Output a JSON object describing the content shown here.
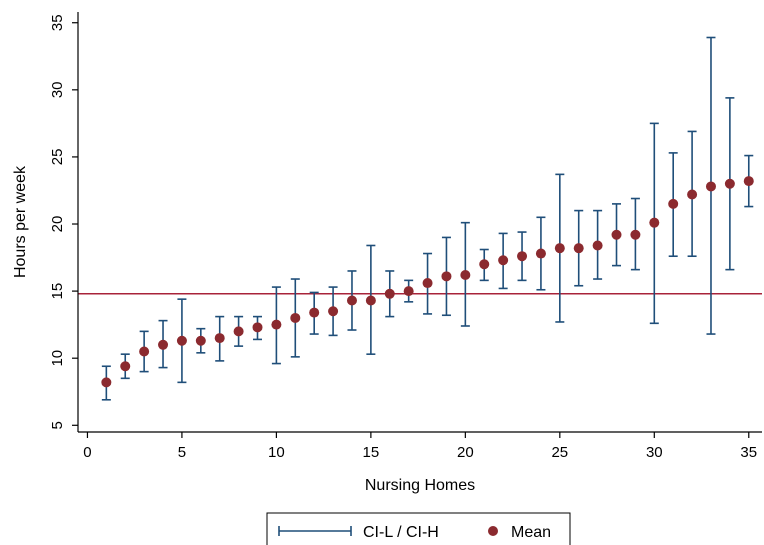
{
  "chart_data": {
    "type": "scatter",
    "xlabel": "Nursing Homes",
    "ylabel": "Hours per week",
    "xlim": [
      -0.5,
      35.7
    ],
    "ylim": [
      4.5,
      35.8
    ],
    "xticks": [
      0,
      5,
      10,
      15,
      20,
      25,
      30,
      35
    ],
    "yticks": [
      5,
      10,
      15,
      20,
      25,
      30,
      35
    ],
    "grid": false,
    "legend_position": "bottom",
    "reference_line": {
      "y": 14.8,
      "color": "#a8233a"
    },
    "colors": {
      "mean": "#8b2a2f",
      "ci": "#1f4e79",
      "axis": "#000000"
    },
    "series": [
      {
        "name": "CI-L / CI-H",
        "kind": "errorbar",
        "x": [
          1,
          2,
          3,
          4,
          5,
          6,
          7,
          8,
          9,
          10,
          11,
          12,
          13,
          14,
          15,
          16,
          17,
          18,
          19,
          20,
          21,
          22,
          23,
          24,
          25,
          26,
          27,
          28,
          29,
          30,
          31,
          32,
          33,
          34,
          35
        ],
        "low": [
          6.9,
          8.5,
          9.0,
          9.3,
          8.2,
          10.4,
          9.8,
          10.9,
          11.4,
          9.6,
          10.1,
          11.8,
          11.7,
          12.1,
          10.3,
          13.1,
          14.2,
          13.3,
          13.2,
          12.4,
          15.8,
          15.2,
          15.8,
          15.1,
          12.7,
          15.4,
          15.9,
          16.9,
          16.6,
          12.6,
          17.6,
          17.6,
          11.8,
          16.6,
          21.3
        ],
        "high": [
          9.4,
          10.3,
          12.0,
          12.8,
          14.4,
          12.2,
          13.1,
          13.1,
          13.1,
          15.3,
          15.9,
          14.9,
          15.3,
          16.5,
          18.4,
          16.5,
          15.8,
          17.8,
          19.0,
          20.1,
          18.1,
          19.3,
          19.4,
          20.5,
          23.7,
          21.0,
          21.0,
          21.5,
          21.9,
          27.5,
          25.3,
          26.9,
          33.9,
          29.4,
          25.1
        ]
      },
      {
        "name": "Mean",
        "kind": "point",
        "x": [
          1,
          2,
          3,
          4,
          5,
          6,
          7,
          8,
          9,
          10,
          11,
          12,
          13,
          14,
          15,
          16,
          17,
          18,
          19,
          20,
          21,
          22,
          23,
          24,
          25,
          26,
          27,
          28,
          29,
          30,
          31,
          32,
          33,
          34,
          35
        ],
        "y": [
          8.2,
          9.4,
          10.5,
          11.0,
          11.3,
          11.3,
          11.5,
          12.0,
          12.3,
          12.5,
          13.0,
          13.4,
          13.5,
          14.3,
          14.3,
          14.8,
          15.0,
          15.6,
          16.1,
          16.2,
          17.0,
          17.3,
          17.6,
          17.8,
          18.2,
          18.2,
          18.4,
          19.2,
          19.2,
          20.1,
          21.5,
          22.2,
          22.8,
          23.0,
          23.2
        ]
      }
    ]
  }
}
